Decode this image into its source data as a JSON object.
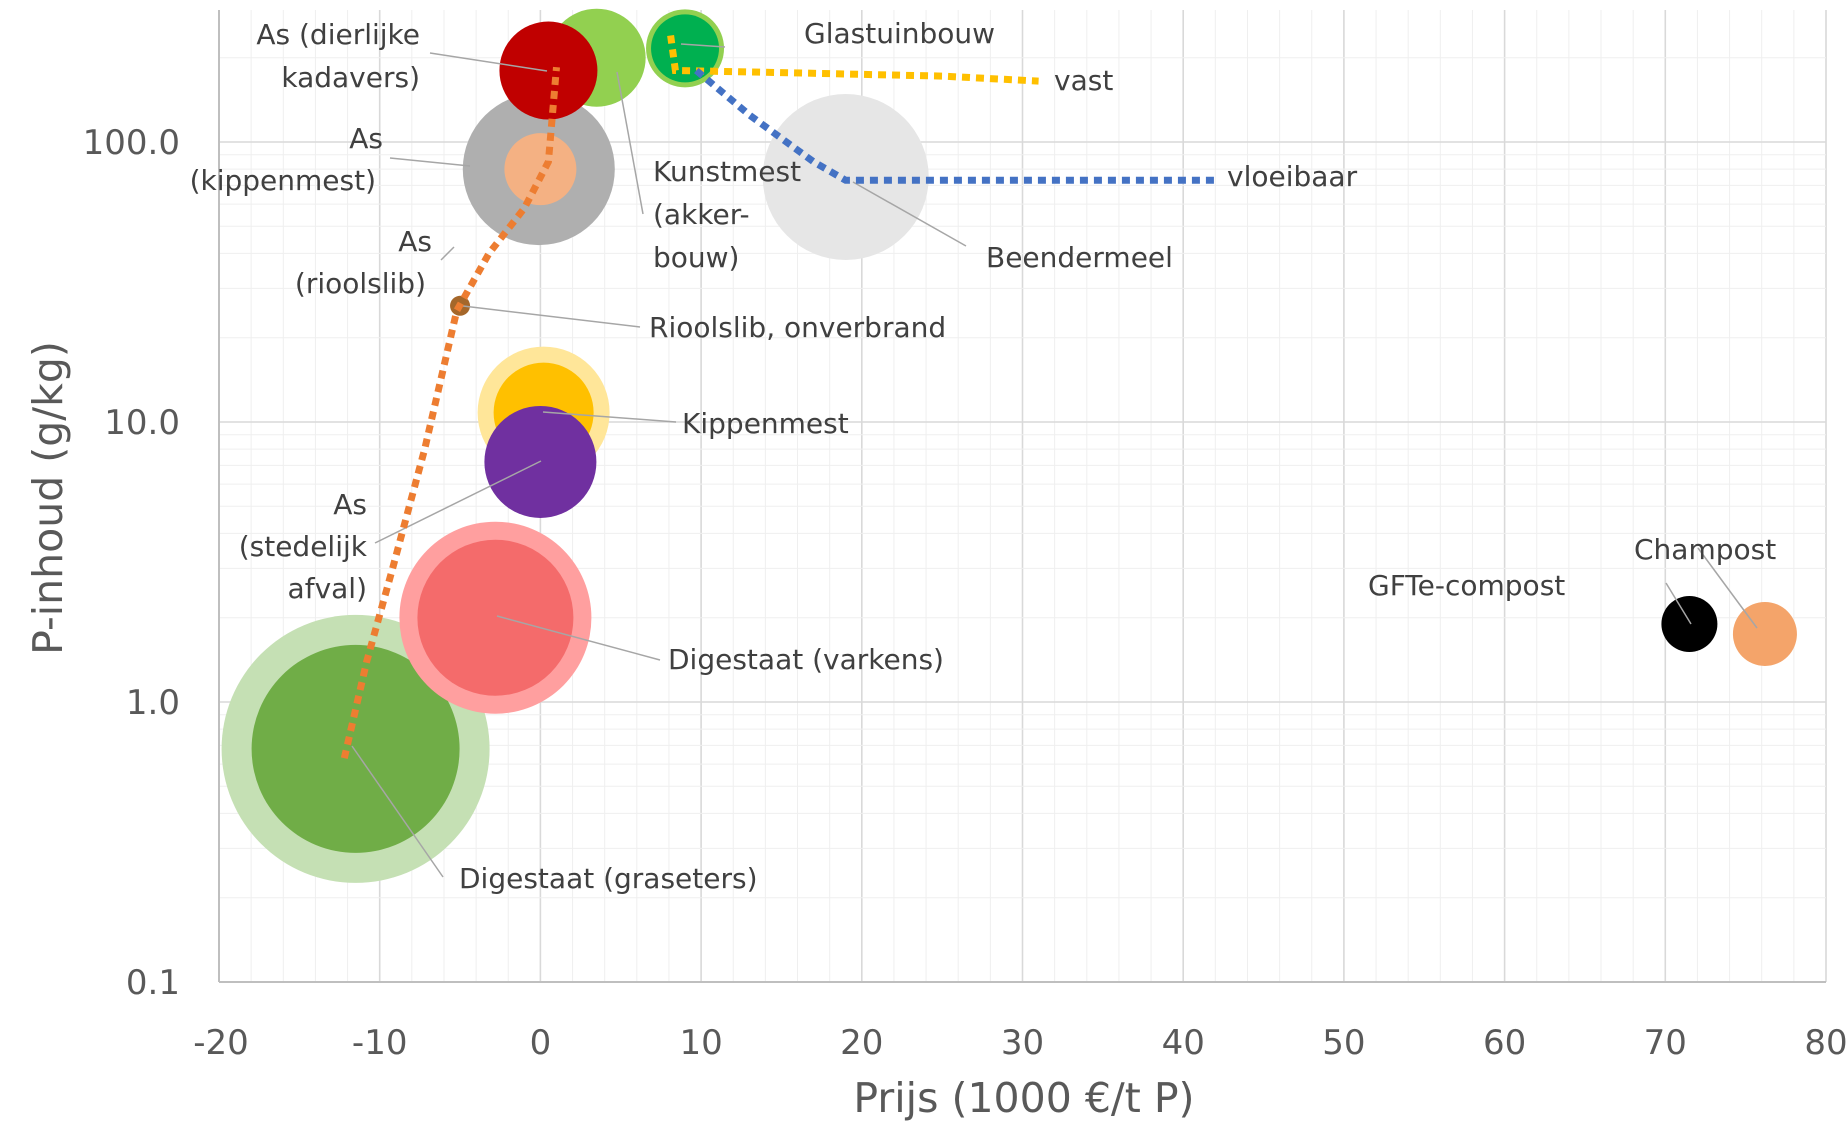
{
  "chart_data": {
    "type": "bubble",
    "xlabel": "Prijs (1000 €/t P)",
    "ylabel": "P-inhoud (g/kg)",
    "xlim": [
      -20,
      80
    ],
    "ylim": [
      0.1,
      300
    ],
    "y_scale": "log",
    "x_ticks": [
      "-20",
      "-10",
      "0",
      "10",
      "20",
      "30",
      "40",
      "50",
      "60",
      "70",
      "80"
    ],
    "y_ticks": [
      "0.1",
      "1.0",
      "10.0",
      "100.0"
    ],
    "grid": true,
    "points": [
      {
        "name": "Digestaat (graseters) halo",
        "x": -11.5,
        "y": 0.68,
        "r": 134,
        "color": "#c5e0b4"
      },
      {
        "name": "Digestaat (graseters)",
        "x": -11.5,
        "y": 0.68,
        "r": 104,
        "color": "#70ad47"
      },
      {
        "name": "Digestaat (varkens) halo",
        "x": -2.8,
        "y": 2.0,
        "r": 96,
        "color": "#ff9f9f"
      },
      {
        "name": "Digestaat (varkens)",
        "x": -2.8,
        "y": 2.0,
        "r": 78,
        "color": "#f46b6b"
      },
      {
        "name": "Kippenmest halo",
        "x": 0.2,
        "y": 10.8,
        "r": 66,
        "color": "#ffe699"
      },
      {
        "name": "Kippenmest",
        "x": 0.2,
        "y": 10.8,
        "r": 50,
        "color": "#ffc000"
      },
      {
        "name": "As (stedelijk afval)",
        "x": 0.0,
        "y": 7.2,
        "r": 56,
        "color": "#7030a0"
      },
      {
        "name": "As (kippenmest)",
        "x": -0.1,
        "y": 80,
        "r": 76,
        "color": "#afafaf"
      },
      {
        "name": "As (kippenmest) inner",
        "x": 0.0,
        "y": 80,
        "r": 36,
        "color": "#f4b183"
      },
      {
        "name": "Rioolslib, onverbrand",
        "x": -5.0,
        "y": 26,
        "r": 10,
        "color": "#a5672a"
      },
      {
        "name": "Kunstmest (akkerbouw)",
        "x": 3.5,
        "y": 200,
        "r": 49,
        "color": "#92d050"
      },
      {
        "name": "As (dierlijke kadavers)",
        "x": 0.5,
        "y": 180,
        "r": 49,
        "color": "#c00000"
      },
      {
        "name": "Glastuinbouw halo",
        "x": 9.0,
        "y": 216,
        "r": 39,
        "color": "#92d050"
      },
      {
        "name": "Glastuinbouw",
        "x": 9.0,
        "y": 216,
        "r": 34,
        "color": "#00b050"
      },
      {
        "name": "Beendermeel",
        "x": 19.0,
        "y": 75,
        "r": 83,
        "color": "#e6e6e6"
      },
      {
        "name": "GFTe-compost",
        "x": 71.5,
        "y": 1.9,
        "r": 28,
        "color": "#000000"
      },
      {
        "name": "Champost",
        "x": 76.2,
        "y": 1.75,
        "r": 32,
        "color": "#f4a46a"
      }
    ],
    "lines": [
      {
        "name": "orange-trend",
        "color": "#ed7d31",
        "points": [
          [
            -12.2,
            0.63
          ],
          [
            -10.8,
            1.4
          ],
          [
            -9.2,
            3.0
          ],
          [
            -7.2,
            8.0
          ],
          [
            -5.2,
            25
          ],
          [
            -3.2,
            40
          ],
          [
            -1.0,
            58
          ],
          [
            0.5,
            85
          ],
          [
            1.0,
            185
          ]
        ]
      },
      {
        "name": "vast",
        "color": "#ffc000",
        "points": [
          [
            8.1,
            240
          ],
          [
            8.4,
            180
          ],
          [
            15,
            177
          ],
          [
            25,
            172
          ],
          [
            31,
            165
          ]
        ]
      },
      {
        "name": "vloeibaar",
        "color": "#4472c4",
        "points": [
          [
            9.7,
            180
          ],
          [
            13,
            125
          ],
          [
            17,
            85
          ],
          [
            19,
            73
          ],
          [
            30,
            73
          ],
          [
            42,
            73
          ]
        ]
      }
    ],
    "labels": [
      {
        "text": "As (dierlijke",
        "key": "as_dierlijke_1"
      },
      {
        "text": "kadavers)",
        "key": "as_dierlijke_2"
      },
      {
        "text": "As",
        "key": "as_kip_1"
      },
      {
        "text": "(kippenmest)",
        "key": "as_kip_2"
      },
      {
        "text": "As",
        "key": "as_riool_1"
      },
      {
        "text": "(rioolslib)",
        "key": "as_riool_2"
      },
      {
        "text": "Glastuinbouw",
        "key": "glas"
      },
      {
        "text": "vast",
        "key": "vast"
      },
      {
        "text": "vloeibaar",
        "key": "vloeibaar"
      },
      {
        "text": "Kunstmest",
        "key": "kunst_1"
      },
      {
        "text": "(akker-",
        "key": "kunst_2"
      },
      {
        "text": "bouw)",
        "key": "kunst_3"
      },
      {
        "text": "Beendermeel",
        "key": "been"
      },
      {
        "text": "Rioolslib, onverbrand",
        "key": "riool"
      },
      {
        "text": "Kippenmest",
        "key": "kippenmest"
      },
      {
        "text": "As",
        "key": "as_sted_1"
      },
      {
        "text": "(stedelijk",
        "key": "as_sted_2"
      },
      {
        "text": "afval)",
        "key": "as_sted_3"
      },
      {
        "text": "Digestaat (varkens)",
        "key": "dig_varkens"
      },
      {
        "text": "Digestaat (graseters)",
        "key": "dig_gras"
      },
      {
        "text": "Champost",
        "key": "champost"
      },
      {
        "text": "GFTe-compost",
        "key": "gfte"
      }
    ]
  }
}
